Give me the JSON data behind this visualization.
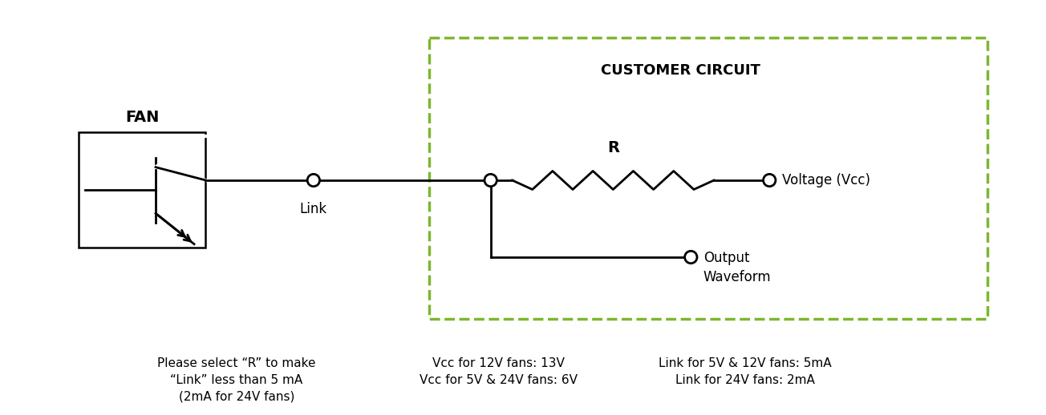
{
  "bg_color": "#ffffff",
  "line_color": "#000000",
  "dashed_box_color": "#7db72f",
  "fan_label": "FAN",
  "customer_circuit_label": "CUSTOMER CIRCUIT",
  "link_label": "Link",
  "R_label": "R",
  "voltage_label": "Voltage (Vcc)",
  "output_label": "Output\nWaveform",
  "note_text1": "Please select “R” to make\n“Link” less than 5 mA\n(2mA for 24V fans)",
  "note_text2": "Vcc for 12V fans: 13V\nVcc for 5V & 24V fans: 6V",
  "note_text3": "Link for 5V & 12V fans: 5mA\nLink for 24V fans: 2mA"
}
